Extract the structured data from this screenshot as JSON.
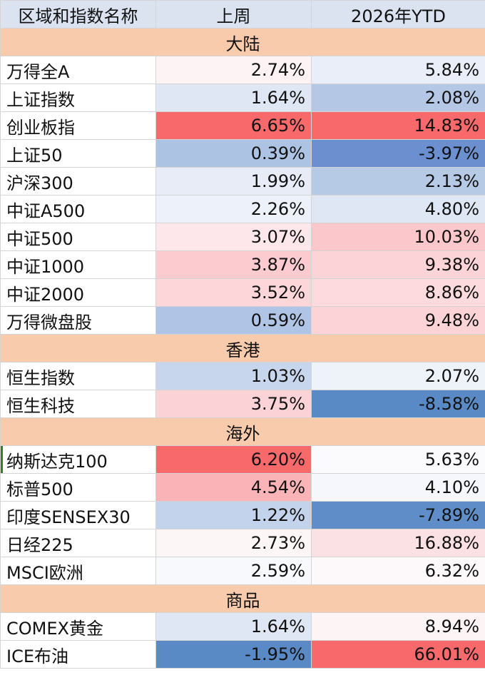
{
  "table": {
    "headers": [
      "区域和指数名称",
      "上周",
      "2026年YTD"
    ],
    "sections": [
      {
        "title": "大陆",
        "rows": [
          {
            "name": "万得全A",
            "week": "2.74%",
            "ytd": "5.84%",
            "week_color": "#fdf3f5",
            "ytd_color": "#e9eef8"
          },
          {
            "name": "上证指数",
            "week": "1.64%",
            "ytd": "2.08%",
            "week_color": "#dfe7f4",
            "ytd_color": "#b4c8e5"
          },
          {
            "name": "创业板指",
            "week": "6.65%",
            "ytd": "14.83%",
            "week_color": "#f8696b",
            "ytd_color": "#f8696b"
          },
          {
            "name": "上证50",
            "week": "0.39%",
            "ytd": "-3.97%",
            "week_color": "#adc3e4",
            "ytd_color": "#6b8fcf"
          },
          {
            "name": "沪深300",
            "week": "1.99%",
            "ytd": "2.13%",
            "week_color": "#e7ecf7",
            "ytd_color": "#b6cae6"
          },
          {
            "name": "中证A500",
            "week": "2.26%",
            "ytd": "4.80%",
            "week_color": "#edf1f9",
            "ytd_color": "#dfe7f4"
          },
          {
            "name": "中证500",
            "week": "3.07%",
            "ytd": "10.03%",
            "week_color": "#fde7ea",
            "ytd_color": "#fbc7cb"
          },
          {
            "name": "中证1000",
            "week": "3.87%",
            "ytd": "9.38%",
            "week_color": "#fbcbcf",
            "ytd_color": "#fcd3d6"
          },
          {
            "name": "中证2000",
            "week": "3.52%",
            "ytd": "8.86%",
            "week_color": "#fcd6d9",
            "ytd_color": "#fcdadd"
          },
          {
            "name": "万得微盘股",
            "week": "0.59%",
            "ytd": "9.48%",
            "week_color": "#b0c5e5",
            "ytd_color": "#fcd4d7"
          }
        ]
      },
      {
        "title": "香港",
        "rows": [
          {
            "name": "恒生指数",
            "week": "1.03%",
            "ytd": "2.07%",
            "week_color": "#c8d6ed",
            "ytd_color": "#eef2f9"
          },
          {
            "name": "恒生科技",
            "week": "3.75%",
            "ytd": "-8.58%",
            "week_color": "#fbd3d6",
            "ytd_color": "#5a8ac6"
          }
        ]
      },
      {
        "title": "海外",
        "rows": [
          {
            "name": "纳斯达克100",
            "week": "6.20%",
            "ytd": "5.63%",
            "week_color": "#f8696b",
            "ytd_color": "#fbfbfe"
          },
          {
            "name": "标普500",
            "week": "4.54%",
            "ytd": "4.10%",
            "week_color": "#fab3b7",
            "ytd_color": "#f5f7fc"
          },
          {
            "name": "印度SENSEX30",
            "week": "1.22%",
            "ytd": "-7.89%",
            "week_color": "#c3d3eb",
            "ytd_color": "#5f8dc8"
          },
          {
            "name": "日经225",
            "week": "2.73%",
            "ytd": "16.88%",
            "week_color": "#fdf6f7",
            "ytd_color": "#fce1e4"
          },
          {
            "name": "MSCI欧洲",
            "week": "2.59%",
            "ytd": "6.32%",
            "week_color": "#f7f9fd",
            "ytd_color": "#fdf9fa"
          }
        ]
      },
      {
        "title": "商品",
        "rows": [
          {
            "name": "COMEX黄金",
            "week": "1.64%",
            "ytd": "8.94%",
            "week_color": "#dfe7f4",
            "ytd_color": "#fdf4f6"
          },
          {
            "name": "ICE布油",
            "week": "-1.95%",
            "ytd": "66.01%",
            "week_color": "#5a8ac6",
            "ytd_color": "#f8696b"
          }
        ]
      }
    ]
  },
  "colors": {
    "header_bg": "#dbe3f1",
    "section_bg": "#f8cbad",
    "high": "#f8696b",
    "low": "#5a8ac6",
    "gridline": "#d4d4d4"
  }
}
